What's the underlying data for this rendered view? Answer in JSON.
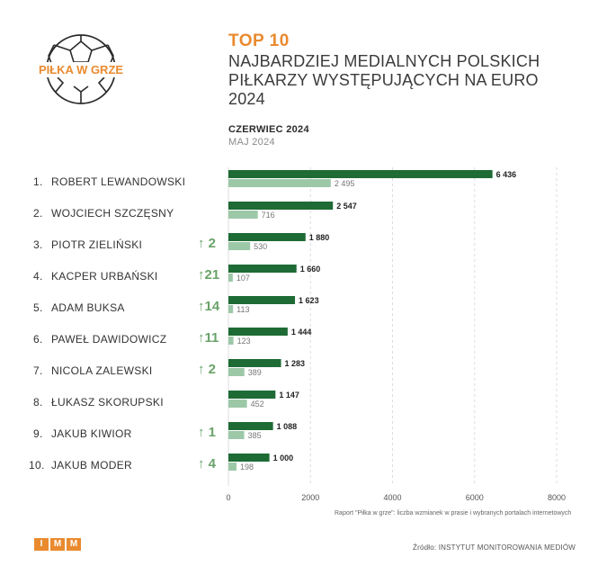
{
  "logo": {
    "text": "PIŁKA W GRZE"
  },
  "header": {
    "top": "TOP 10",
    "subtitle": "NAJBARDZIEJ MEDIALNYCH POLSKICH PIŁKARZY WYSTĘPUJĄCYCH NA EURO 2024"
  },
  "legend": {
    "current": "CZERWIEC 2024",
    "previous": "MAJ 2024"
  },
  "players": [
    {
      "rank": "1.",
      "name": "ROBERT LEWANDOWSKI",
      "change": ""
    },
    {
      "rank": "2.",
      "name": "WOJCIECH SZCZĘSNY",
      "change": ""
    },
    {
      "rank": "3.",
      "name": "PIOTR ZIELIŃSKI",
      "change": "2"
    },
    {
      "rank": "4.",
      "name": "KACPER URBAŃSKI",
      "change": "21"
    },
    {
      "rank": "5.",
      "name": "ADAM BUKSA",
      "change": "14"
    },
    {
      "rank": "6.",
      "name": "PAWEŁ DAWIDOWICZ",
      "change": "11"
    },
    {
      "rank": "7.",
      "name": "NICOLA ZALEWSKI",
      "change": "2"
    },
    {
      "rank": "8.",
      "name": "ŁUKASZ SKORUPSKI",
      "change": ""
    },
    {
      "rank": "9.",
      "name": "JAKUB KIWIOR",
      "change": "1"
    },
    {
      "rank": "10.",
      "name": "JAKUB MODER",
      "change": "4"
    }
  ],
  "chart_data": {
    "type": "bar",
    "orientation": "horizontal",
    "categories": [
      "ROBERT LEWANDOWSKI",
      "WOJCIECH SZCZĘSNY",
      "PIOTR ZIELIŃSKI",
      "KACPER URBAŃSKI",
      "ADAM BUKSA",
      "PAWEŁ DAWIDOWICZ",
      "NICOLA ZALEWSKI",
      "ŁUKASZ SKORUPSKI",
      "JAKUB KIWIOR",
      "JAKUB MODER"
    ],
    "series": [
      {
        "name": "CZERWIEC 2024",
        "color": "#1e6b35",
        "values": [
          6436,
          2547,
          1880,
          1660,
          1623,
          1444,
          1283,
          1147,
          1088,
          1000
        ],
        "labels": [
          "6 436",
          "2 547",
          "1 880",
          "1 660",
          "1 623",
          "1 444",
          "1 283",
          "1 147",
          "1 088",
          "1 000"
        ]
      },
      {
        "name": "MAJ 2024",
        "color": "#9cc8a8",
        "values": [
          2495,
          716,
          530,
          107,
          113,
          123,
          389,
          452,
          385,
          198
        ],
        "labels": [
          "2 495",
          "716",
          "530",
          "107",
          "113",
          "123",
          "389",
          "452",
          "385",
          "198"
        ]
      }
    ],
    "xlim": [
      0,
      8000
    ],
    "xticks": [
      0,
      2000,
      4000,
      6000,
      8000
    ],
    "xtick_labels": [
      "0",
      "2000",
      "4000",
      "6000",
      "8000"
    ],
    "grid": true
  },
  "note": "Raport \"Piłka w grze\": liczba wzmianek w prasie i wybranych portalach internetowych",
  "footer": {
    "imm_letters": [
      "I",
      "M",
      "M"
    ],
    "source": "Źródło: INSTYTUT MONITOROWANIA MEDIÓW"
  },
  "colors": {
    "accent": "#e98a2f",
    "current": "#1e6b35",
    "previous": "#9cc8a8",
    "arrow": "#6aa36a"
  }
}
